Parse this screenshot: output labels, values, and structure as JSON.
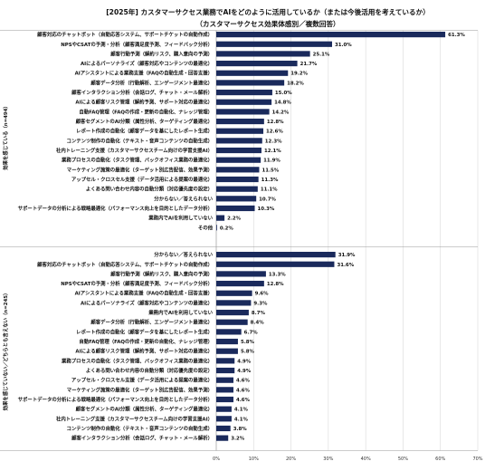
{
  "chart_data": {
    "type": "bar",
    "orientation": "horizontal",
    "title": "[2025年] カスタマーサクセス業務でAIをどのように活用しているか（または今後活用を考えているか）",
    "subtitle": "（カスタマーサクセス効果体感別／複数回答）",
    "xlim": [
      0,
      70
    ],
    "x_ticks": [
      "0%",
      "10%",
      "20%",
      "30%",
      "40%",
      "50%",
      "60%",
      "70%"
    ],
    "grid": true,
    "bar_color": "#1a2a5c",
    "groups": [
      {
        "label": "効果を感じている（n=494）",
        "categories": [
          "顧客対応のチャットボット（自動応答システム、サポートチケットの自動作成）",
          "NPSやCSATの予測・分析（顧客満足度予測、フィードバック分析）",
          "顧客行動予測（解約リスク、購入意向の予測）",
          "AIによるパーソナライズ（顧客対応やコンテンツの最適化）",
          "AIアシスタントによる業務支援（FAQの自動生成・回答支援）",
          "顧客データ分析（行動解析、エンゲージメント最適化）",
          "顧客インタラクション分析（会話ログ、チャット・メール解析）",
          "AIによる顧客リスク管理（解約予測、サポート対応の最適化）",
          "自動FAQ管理（FAQの作成・更新の自動化、ナレッジ管理）",
          "顧客セグメントのAI分類（属性分析、ターゲティング最適化）",
          "レポート作成の自動化（顧客データを基にしたレポート生成）",
          "コンテンツ制作の自動化（テキスト・音声コンテンツの自動生成）",
          "社内トレーニング支援（カスタマーサクセスチーム向けの学習支援AI）",
          "業務プロセスの自動化（タスク管理、バックオフィス業務の最適化）",
          "マーケティング施策の最適化（ターゲット別広告配信、効果予測）",
          "アップセル・クロスセル支援（データ活用による提案の最適化）",
          "よくある問い合わせ内容の自動分類（対応優先度の設定）",
          "分からない／答えられない",
          "サポートデータの分析による戦略最適化（パフォーマンス向上を目的としたデータ分析）",
          "業務内でAIを利用していない",
          "その他"
        ],
        "values": [
          61.3,
          31.0,
          25.1,
          21.7,
          19.2,
          18.2,
          15.0,
          14.8,
          14.2,
          12.8,
          12.6,
          12.3,
          12.1,
          11.9,
          11.5,
          11.3,
          11.1,
          10.7,
          10.3,
          2.2,
          0.2
        ],
        "value_labels": [
          "61.3%",
          "31.0%",
          "25.1%",
          "21.7%",
          "19.2%",
          "18.2%",
          "15.0%",
          "14.8%",
          "14.2%",
          "12.8%",
          "12.6%",
          "12.3%",
          "12.1%",
          "11.9%",
          "11.5%",
          "11.3%",
          "11.1%",
          "10.7%",
          "10.3%",
          "2.2%",
          "0.2%"
        ]
      },
      {
        "label": "効果を感じていない／どちらとも言えない（n=245）",
        "categories": [
          "分からない／答えられない",
          "顧客対応のチャットボット（自動応答システム、サポートチケットの自動作成）",
          "顧客行動予測（解約リスク、購入意向の予測）",
          "NPSやCSATの予測・分析（顧客満足度予測、フィードバック分析）",
          "AIアシスタントによる業務支援（FAQの自動生成・回答支援）",
          "AIによるパーソナライズ（顧客対応やコンテンツの最適化）",
          "業務内でAIを利用していない",
          "顧客データ分析（行動解析、エンゲージメント最適化）",
          "レポート作成の自動化（顧客データを基にしたレポート生成）",
          "自動FAQ管理（FAQの作成・更新の自動化、ナレッジ管理）",
          "AIによる顧客リスク管理（解約予測、サポート対応の最適化）",
          "業務プロセスの自動化（タスク管理、バックオフィス業務の最適化）",
          "よくある問い合わせ内容の自動分類（対応優先度の設定）",
          "アップセル・クロスセル支援（データ活用による提案の最適化）",
          "マーケティング施策の最適化（ターゲット別広告配信、効果予測）",
          "サポートデータの分析による戦略最適化（パフォーマンス向上を目的としたデータ分析）",
          "顧客セグメントのAI分類（属性分析、ターゲティング最適化）",
          "社内トレーニング支援（カスタマーサクセスチーム向けの学習支援AI）",
          "コンテンツ制作の自動化（テキスト・音声コンテンツの自動生成）",
          "顧客インタラクション分析（会話ログ、チャット・メール解析）"
        ],
        "values": [
          31.9,
          31.6,
          13.3,
          12.8,
          9.6,
          9.3,
          8.7,
          8.4,
          6.7,
          5.8,
          5.8,
          4.9,
          4.9,
          4.6,
          4.6,
          4.6,
          4.1,
          4.1,
          3.8,
          3.2
        ],
        "value_labels": [
          "31.9%",
          "31.6%",
          "13.3%",
          "12.8%",
          "9.6%",
          "9.3%",
          "8.7%",
          "8.4%",
          "6.7%",
          "5.8%",
          "5.8%",
          "4.9%",
          "4.9%",
          "4.6%",
          "4.6%",
          "4.6%",
          "4.1%",
          "4.1%",
          "3.8%",
          "3.2%"
        ]
      }
    ]
  }
}
